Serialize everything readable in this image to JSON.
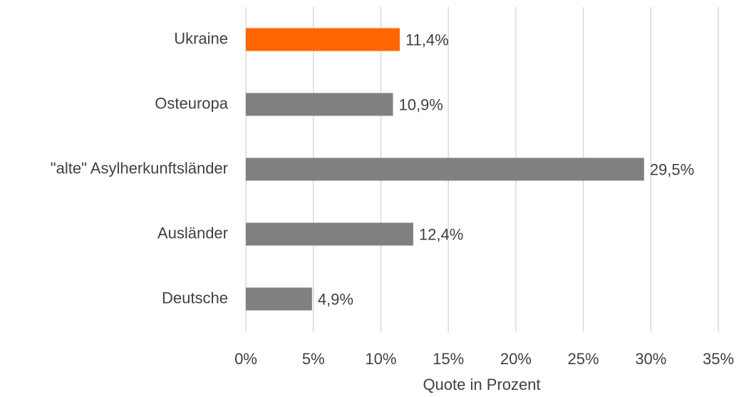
{
  "chart_data": {
    "type": "hbar",
    "categories": [
      "Ukraine",
      "Osteuropa",
      "\"alte\" Asylherkunftsländer",
      "Ausländer",
      "Deutsche"
    ],
    "values": [
      11.4,
      10.9,
      29.5,
      12.4,
      4.9
    ],
    "value_labels": [
      "11,4%",
      "10,9%",
      "29,5%",
      "12,4%",
      "4,9%"
    ],
    "colors": [
      "#ff6600",
      "#808080",
      "#808080",
      "#808080",
      "#808080"
    ],
    "xlabel": "Quote in Prozent",
    "xlim": [
      0,
      35
    ],
    "xticks": [
      {
        "value": 0,
        "label": "0%"
      },
      {
        "value": 5,
        "label": "5%"
      },
      {
        "value": 10,
        "label": "10%"
      },
      {
        "value": 15,
        "label": "15%"
      },
      {
        "value": 20,
        "label": "20%"
      },
      {
        "value": 25,
        "label": "25%"
      },
      {
        "value": 30,
        "label": "30%"
      },
      {
        "value": 35,
        "label": "35%"
      }
    ],
    "grid": true
  }
}
